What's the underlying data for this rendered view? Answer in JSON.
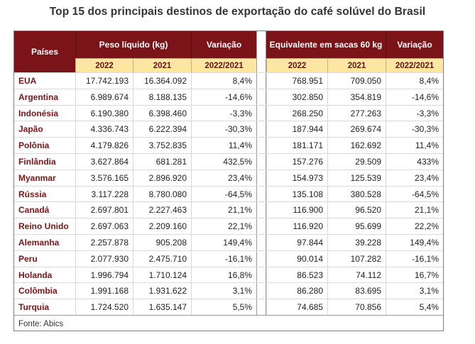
{
  "title": "Top 15 dos principais destinos de exportação do café solúvel do Brasil",
  "colors": {
    "header_bg": "#7a1418",
    "subheader_bg": "#fbe6a4",
    "country_text": "#7a1418"
  },
  "table": {
    "col_paises": "Países",
    "group_peso": "Peso líquido (kg)",
    "col_variacao": "Variação",
    "group_sacas": "Equivalente em sacas 60 kg",
    "col_variacao2": "Variação",
    "sub_2022": "2022",
    "sub_2021": "2021",
    "sub_var": "2022/2021",
    "sub2_2022": "2022",
    "sub2_2021": "2021",
    "sub2_var": "2022/2021",
    "rows": [
      {
        "pais": "EUA",
        "kg2022": "17.742.193",
        "kg2021": "16.364.092",
        "var_kg": "8,4%",
        "sc2022": "768.951",
        "sc2021": "709.050",
        "var_sc": "8,4%"
      },
      {
        "pais": "Argentina",
        "kg2022": "6.989.674",
        "kg2021": "8.188.135",
        "var_kg": "-14,6%",
        "sc2022": "302.850",
        "sc2021": "354.819",
        "var_sc": "-14,6%"
      },
      {
        "pais": "Indonésia",
        "kg2022": "6.190.380",
        "kg2021": "6.398.460",
        "var_kg": "-3,3%",
        "sc2022": "268.250",
        "sc2021": "277.263",
        "var_sc": "-3,3%"
      },
      {
        "pais": "Japão",
        "kg2022": "4.336.743",
        "kg2021": "6.222.394",
        "var_kg": "-30,3%",
        "sc2022": "187.944",
        "sc2021": "269.674",
        "var_sc": "-30,3%"
      },
      {
        "pais": "Polônia",
        "kg2022": "4.179.826",
        "kg2021": "3.752.835",
        "var_kg": "11,4%",
        "sc2022": "181.171",
        "sc2021": "162.692",
        "var_sc": "11,4%"
      },
      {
        "pais": "Finlândia",
        "kg2022": "3.627.864",
        "kg2021": "681.281",
        "var_kg": "432,5%",
        "sc2022": "157.276",
        "sc2021": "29.509",
        "var_sc": "433%"
      },
      {
        "pais": "Myanmar",
        "kg2022": "3.576.165",
        "kg2021": "2.896.920",
        "var_kg": "23,4%",
        "sc2022": "154.973",
        "sc2021": "125.539",
        "var_sc": "23,4%"
      },
      {
        "pais": "Rússia",
        "kg2022": "3.117.228",
        "kg2021": "8.780.080",
        "var_kg": "-64,5%",
        "sc2022": "135.108",
        "sc2021": "380.528",
        "var_sc": "-64,5%"
      },
      {
        "pais": "Canadá",
        "kg2022": "2.697.801",
        "kg2021": "2.227.463",
        "var_kg": "21,1%",
        "sc2022": "116.900",
        "sc2021": "96.520",
        "var_sc": "21,1%"
      },
      {
        "pais": "Reino Unido",
        "kg2022": "2.697.063",
        "kg2021": "2.209.160",
        "var_kg": "22,1%",
        "sc2022": "116.920",
        "sc2021": "95.699",
        "var_sc": "22,2%"
      },
      {
        "pais": "Alemanha",
        "kg2022": "2.257.878",
        "kg2021": "905.208",
        "var_kg": "149,4%",
        "sc2022": "97.844",
        "sc2021": "39.228",
        "var_sc": "149,4%"
      },
      {
        "pais": "Peru",
        "kg2022": "2.077.930",
        "kg2021": "2.475.710",
        "var_kg": "-16,1%",
        "sc2022": "90.014",
        "sc2021": "107.282",
        "var_sc": "-16,1%"
      },
      {
        "pais": "Holanda",
        "kg2022": "1.996.794",
        "kg2021": "1.710.124",
        "var_kg": "16,8%",
        "sc2022": "86.523",
        "sc2021": "74.112",
        "var_sc": "16,7%"
      },
      {
        "pais": "Colômbia",
        "kg2022": "1.991.168",
        "kg2021": "1.931.622",
        "var_kg": "3,1%",
        "sc2022": "86.280",
        "sc2021": "83.695",
        "var_sc": "3,1%"
      },
      {
        "pais": "Turquia",
        "kg2022": "1.724.520",
        "kg2021": "1.635.147",
        "var_kg": "5,5%",
        "sc2022": "74.685",
        "sc2021": "70.856",
        "var_sc": "5,4%"
      }
    ]
  },
  "fonte": "Fonte: Abics"
}
